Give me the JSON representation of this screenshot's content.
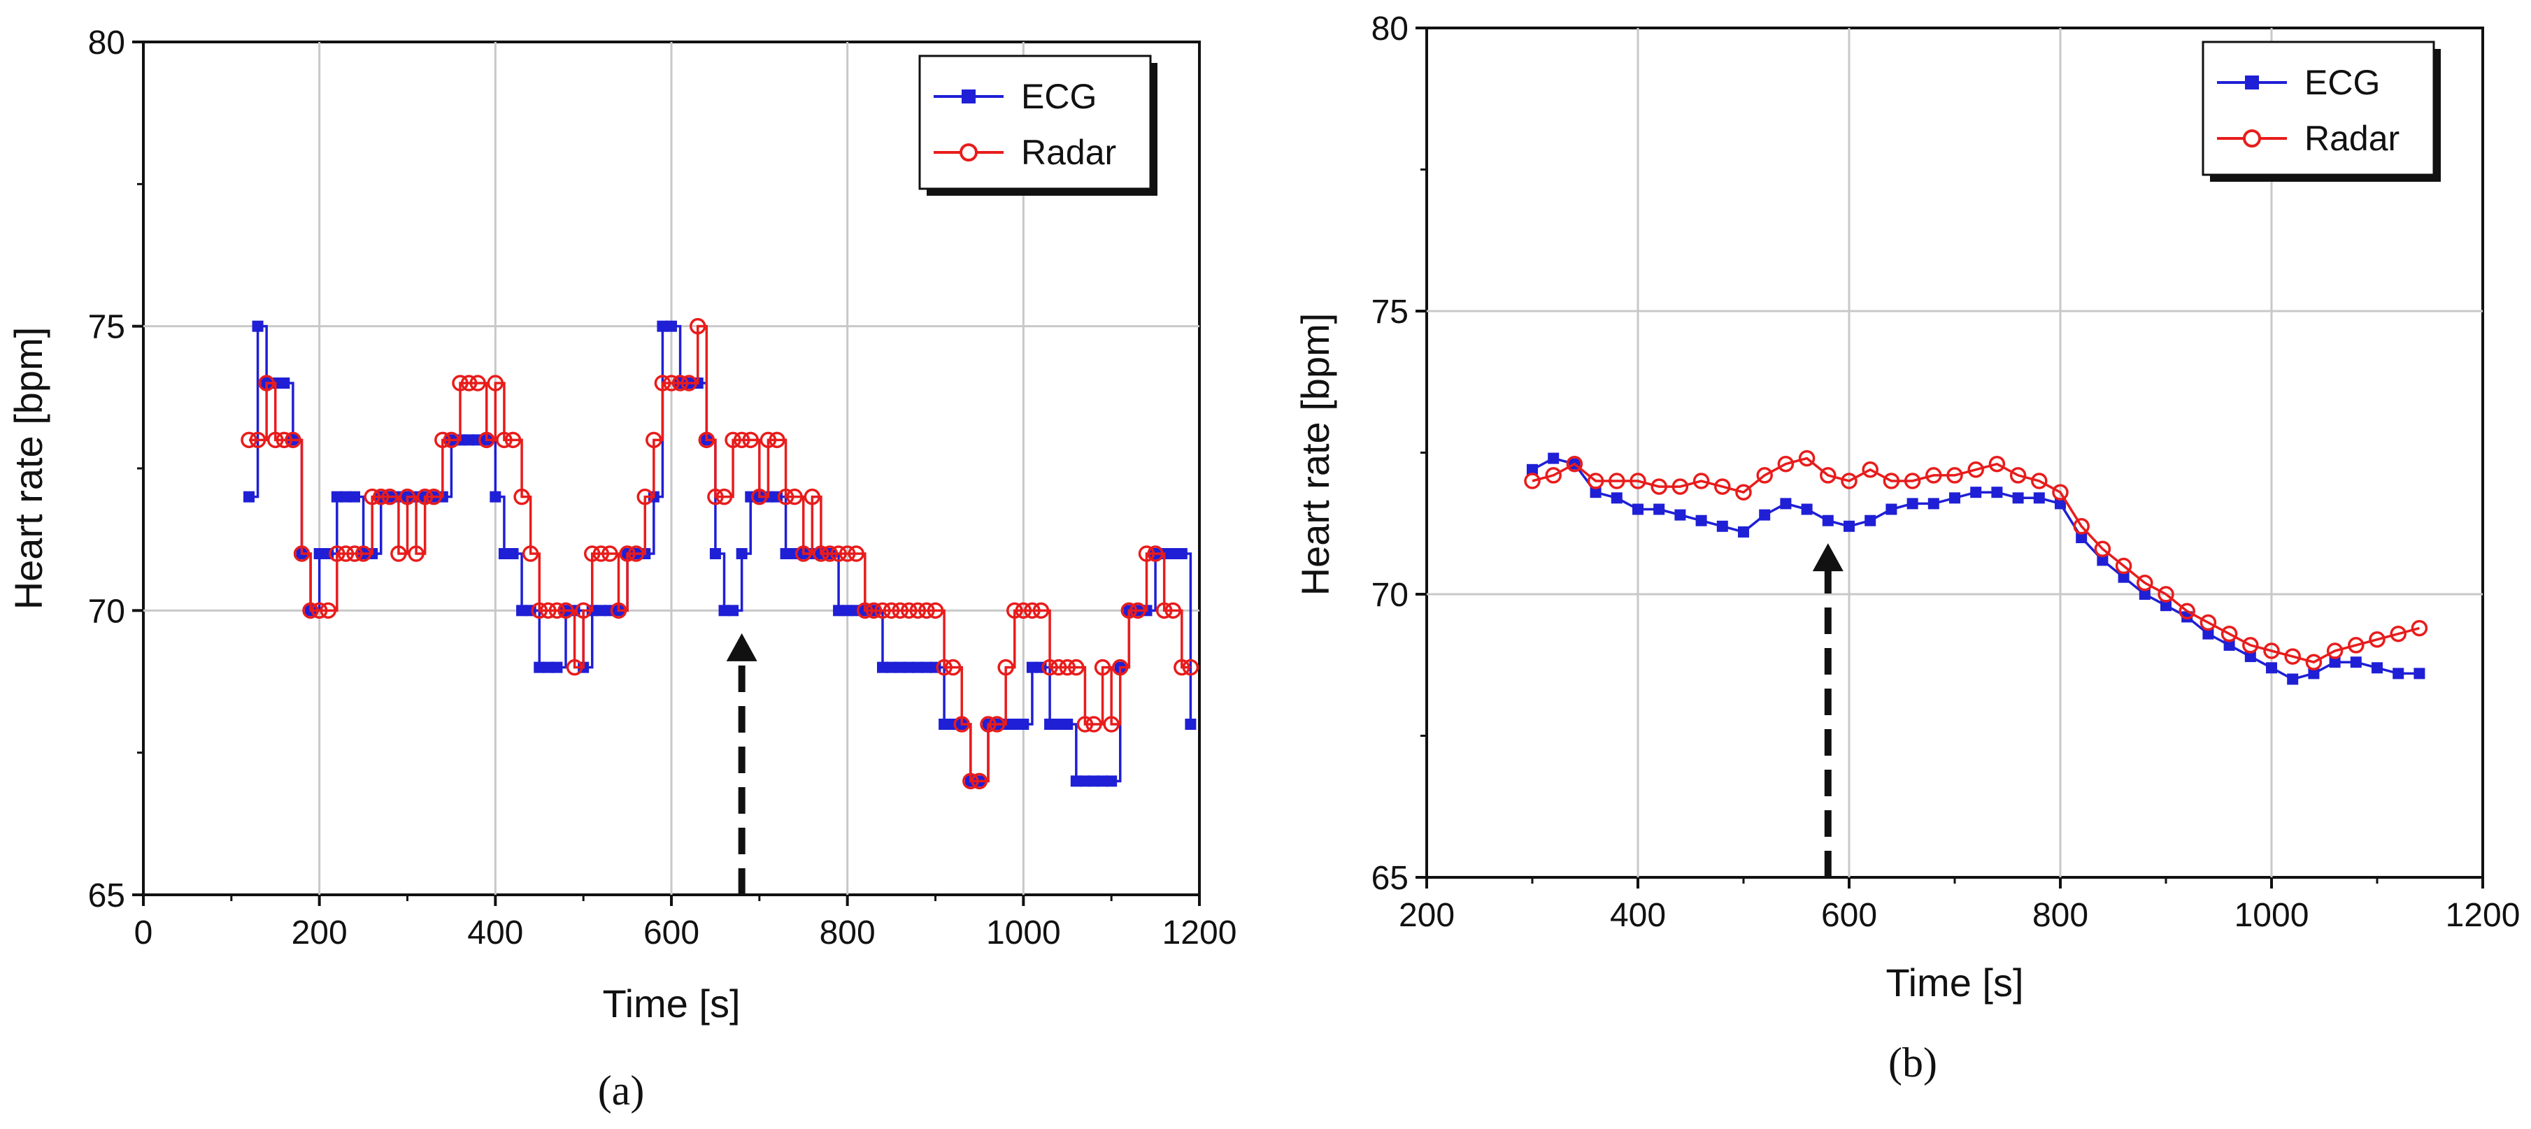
{
  "figure": {
    "panels": [
      "(a)",
      "(b)"
    ]
  },
  "chart_data": [
    {
      "type": "line",
      "panel_label": "(a)",
      "title": "",
      "xlabel": "Time [s]",
      "ylabel": "Heart rate [bpm]",
      "xlim": [
        0,
        1200
      ],
      "ylim": [
        65,
        80
      ],
      "xticks": [
        "0",
        "200",
        "400",
        "600",
        "800",
        "1000",
        "1200"
      ],
      "yticks": [
        "65",
        "70",
        "75",
        "80"
      ],
      "xtick_values": [
        0,
        200,
        400,
        600,
        800,
        1000,
        1200
      ],
      "ytick_values": [
        65,
        70,
        75,
        80
      ],
      "grid": true,
      "legend_position": "top-right",
      "annotation": {
        "type": "dashed-arrow",
        "x": 680,
        "from_y": 65,
        "to_y": 69.6
      },
      "series": [
        {
          "name": "ECG",
          "color": "#1f1fd6",
          "marker": "square",
          "x": [
            120,
            130,
            140,
            150,
            160,
            170,
            180,
            190,
            200,
            210,
            220,
            230,
            240,
            250,
            260,
            270,
            280,
            290,
            300,
            310,
            320,
            330,
            340,
            350,
            360,
            370,
            380,
            390,
            400,
            410,
            420,
            430,
            440,
            450,
            460,
            470,
            480,
            490,
            500,
            510,
            520,
            530,
            540,
            550,
            560,
            570,
            580,
            590,
            600,
            610,
            620,
            630,
            640,
            650,
            660,
            670,
            680,
            690,
            700,
            710,
            720,
            730,
            740,
            750,
            760,
            770,
            780,
            790,
            800,
            810,
            820,
            830,
            840,
            850,
            860,
            870,
            880,
            890,
            900,
            910,
            920,
            930,
            940,
            950,
            960,
            970,
            980,
            990,
            1000,
            1010,
            1020,
            1030,
            1040,
            1050,
            1060,
            1070,
            1080,
            1090,
            1100,
            1110,
            1120,
            1130,
            1140,
            1150,
            1160,
            1170,
            1180,
            1190
          ],
          "values": [
            72,
            75,
            74,
            74,
            74,
            73,
            71,
            70,
            71,
            71,
            72,
            72,
            72,
            71,
            71,
            72,
            72,
            72,
            72,
            72,
            72,
            72,
            72,
            73,
            73,
            73,
            73,
            73,
            72,
            71,
            71,
            70,
            70,
            69,
            69,
            69,
            70,
            70,
            69,
            70,
            70,
            70,
            70,
            71,
            71,
            71,
            72,
            75,
            75,
            74,
            74,
            74,
            73,
            71,
            70,
            70,
            71,
            72,
            72,
            72,
            72,
            71,
            71,
            71,
            71,
            71,
            71,
            70,
            70,
            70,
            70,
            70,
            69,
            69,
            69,
            69,
            69,
            69,
            69,
            68,
            68,
            68,
            67,
            67,
            68,
            68,
            68,
            68,
            68,
            69,
            69,
            68,
            68,
            68,
            67,
            67,
            67,
            67,
            67,
            69,
            70,
            70,
            70,
            71,
            71,
            71,
            71,
            68
          ],
          "label_color": "#1f1fd6"
        },
        {
          "name": "Radar",
          "color": "#e81c1c",
          "marker": "circle",
          "x": [
            120,
            130,
            140,
            150,
            160,
            170,
            180,
            190,
            200,
            210,
            220,
            230,
            240,
            250,
            260,
            270,
            280,
            290,
            300,
            310,
            320,
            330,
            340,
            350,
            360,
            370,
            380,
            390,
            400,
            410,
            420,
            430,
            440,
            450,
            460,
            470,
            480,
            490,
            500,
            510,
            520,
            530,
            540,
            550,
            560,
            570,
            580,
            590,
            600,
            610,
            620,
            630,
            640,
            650,
            660,
            670,
            680,
            690,
            700,
            710,
            720,
            730,
            740,
            750,
            760,
            770,
            780,
            790,
            800,
            810,
            820,
            830,
            840,
            850,
            860,
            870,
            880,
            890,
            900,
            910,
            920,
            930,
            940,
            950,
            960,
            970,
            980,
            990,
            1000,
            1010,
            1020,
            1030,
            1040,
            1050,
            1060,
            1070,
            1080,
            1090,
            1100,
            1110,
            1120,
            1130,
            1140,
            1150,
            1160,
            1170,
            1180,
            1190
          ],
          "values": [
            73,
            73,
            74,
            73,
            73,
            73,
            71,
            70,
            70,
            70,
            71,
            71,
            71,
            71,
            72,
            72,
            72,
            71,
            72,
            71,
            72,
            72,
            73,
            73,
            74,
            74,
            74,
            73,
            74,
            73,
            73,
            72,
            71,
            70,
            70,
            70,
            70,
            69,
            70,
            71,
            71,
            71,
            70,
            71,
            71,
            72,
            73,
            74,
            74,
            74,
            74,
            75,
            73,
            72,
            72,
            73,
            73,
            73,
            72,
            73,
            73,
            72,
            72,
            71,
            72,
            71,
            71,
            71,
            71,
            71,
            70,
            70,
            70,
            70,
            70,
            70,
            70,
            70,
            70,
            69,
            69,
            68,
            67,
            67,
            68,
            68,
            69,
            70,
            70,
            70,
            70,
            69,
            69,
            69,
            69,
            68,
            68,
            69,
            68,
            69,
            70,
            70,
            71,
            71,
            70,
            70,
            69,
            69
          ],
          "label_color": "#e81c1c"
        }
      ]
    },
    {
      "type": "line",
      "panel_label": "(b)",
      "title": "",
      "xlabel": "Time [s]",
      "ylabel": "Heart rate [bpm]",
      "xlim": [
        200,
        1200
      ],
      "ylim": [
        65,
        80
      ],
      "xticks": [
        "200",
        "400",
        "600",
        "800",
        "1000",
        "1200"
      ],
      "yticks": [
        "65",
        "70",
        "75",
        "80"
      ],
      "xtick_values": [
        200,
        400,
        600,
        800,
        1000,
        1200
      ],
      "ytick_values": [
        65,
        70,
        75,
        80
      ],
      "grid": true,
      "legend_position": "top-right",
      "annotation": {
        "type": "dashed-arrow",
        "x": 580,
        "from_y": 65,
        "to_y": 70.9
      },
      "series": [
        {
          "name": "ECG",
          "color": "#1f1fd6",
          "marker": "square",
          "x": [
            300,
            320,
            340,
            360,
            380,
            400,
            420,
            440,
            460,
            480,
            500,
            520,
            540,
            560,
            580,
            600,
            620,
            640,
            660,
            680,
            700,
            720,
            740,
            760,
            780,
            800,
            820,
            840,
            860,
            880,
            900,
            920,
            940,
            960,
            980,
            1000,
            1020,
            1040,
            1060,
            1080,
            1100,
            1120,
            1140
          ],
          "values": [
            72.2,
            72.4,
            72.3,
            71.8,
            71.7,
            71.5,
            71.5,
            71.4,
            71.3,
            71.2,
            71.1,
            71.4,
            71.6,
            71.5,
            71.3,
            71.2,
            71.3,
            71.5,
            71.6,
            71.6,
            71.7,
            71.8,
            71.8,
            71.7,
            71.7,
            71.6,
            71.0,
            70.6,
            70.3,
            70.0,
            69.8,
            69.6,
            69.3,
            69.1,
            68.9,
            68.7,
            68.5,
            68.6,
            68.8,
            68.8,
            68.7,
            68.6,
            68.6
          ]
        },
        {
          "name": "Radar",
          "color": "#e81c1c",
          "marker": "circle",
          "x": [
            300,
            320,
            340,
            360,
            380,
            400,
            420,
            440,
            460,
            480,
            500,
            520,
            540,
            560,
            580,
            600,
            620,
            640,
            660,
            680,
            700,
            720,
            740,
            760,
            780,
            800,
            820,
            840,
            860,
            880,
            900,
            920,
            940,
            960,
            980,
            1000,
            1020,
            1040,
            1060,
            1080,
            1100,
            1120,
            1140
          ],
          "values": [
            72.0,
            72.1,
            72.3,
            72.0,
            72.0,
            72.0,
            71.9,
            71.9,
            72.0,
            71.9,
            71.8,
            72.1,
            72.3,
            72.4,
            72.1,
            72.0,
            72.2,
            72.0,
            72.0,
            72.1,
            72.1,
            72.2,
            72.3,
            72.1,
            72.0,
            71.8,
            71.2,
            70.8,
            70.5,
            70.2,
            70.0,
            69.7,
            69.5,
            69.3,
            69.1,
            69.0,
            68.9,
            68.8,
            69.0,
            69.1,
            69.2,
            69.3,
            69.4
          ]
        }
      ]
    }
  ]
}
